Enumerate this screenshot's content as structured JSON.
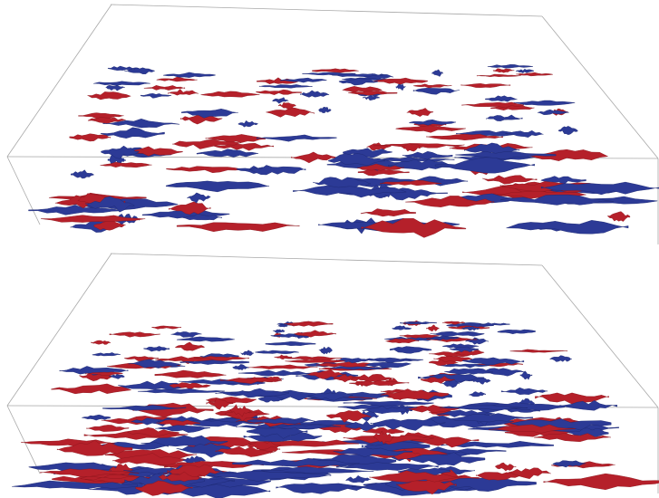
{
  "figure": {
    "panels": [
      {
        "id": "top",
        "content": "isosurface-visualization"
      },
      {
        "id": "bottom",
        "content": "isosurface-visualization"
      }
    ],
    "colors": {
      "positive": "#b5202a",
      "negative": "#2c3a96",
      "box_edge": "#a8a8a8",
      "background": "#ffffff"
    }
  }
}
